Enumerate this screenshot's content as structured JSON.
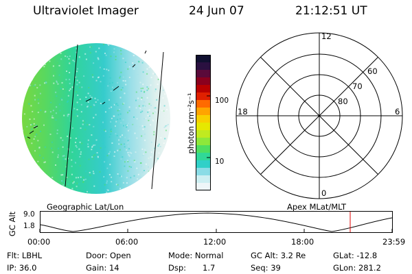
{
  "header": {
    "instrument": "Ultraviolet Imager",
    "date": "24 Jun 07",
    "time": "21:12:51 UT"
  },
  "colorbar": {
    "unit_label": "photon cm⁻²s⁻¹",
    "ticks": [
      "100",
      "10"
    ],
    "colors": [
      "#101030",
      "#2a1040",
      "#5a0a3a",
      "#8a001e",
      "#b80000",
      "#e02000",
      "#ff6a00",
      "#ffa400",
      "#f8d000",
      "#e6e800",
      "#c0ea20",
      "#8ee83a",
      "#4ede60",
      "#30d898",
      "#30d0c8",
      "#8adce6",
      "#cdeff2",
      "#eef6f8"
    ]
  },
  "polar_grid": {
    "mlt_labels": [
      "12",
      "18",
      "6",
      "0"
    ],
    "lat_labels": [
      "60",
      "70",
      "80"
    ]
  },
  "altitude_plot": {
    "ylabel": "GC Alt",
    "yticks": [
      "9.0",
      "1.8"
    ],
    "left_label": "Geographic Lat/Lon",
    "right_label": "Apex MLat/MLT",
    "xticks": [
      "00:00",
      "06:00",
      "12:00",
      "18:00",
      "23:59"
    ]
  },
  "status": {
    "filter": "Flt: LBHL",
    "ip": "IP: 36.0",
    "door": "Door: Open",
    "gain": "Gain: 14",
    "mode": "Mode: Normal",
    "dsp_label": "Dsp:",
    "dsp_value": "1.7",
    "gc_alt": "GC Alt: 3.2 Re",
    "seq": "Seq: 39",
    "glat": "GLat: -12.8",
    "glon": "GLon: 281.2"
  }
}
